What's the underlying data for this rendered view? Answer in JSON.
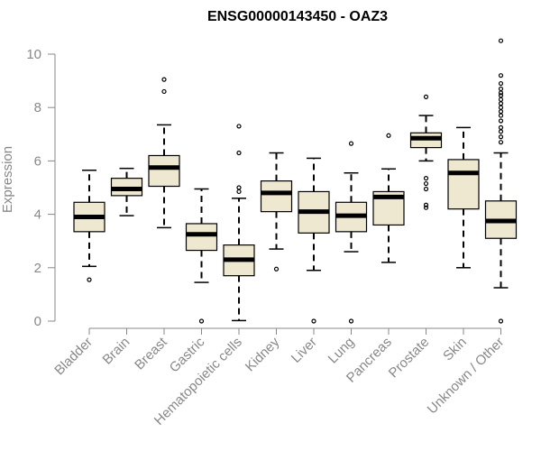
{
  "chart_data": {
    "type": "boxplot",
    "title": "ENSG00000143450 - OAZ3",
    "xlabel": "",
    "ylabel": "Expression",
    "ylim": [
      0,
      10.5
    ],
    "yticks": [
      0,
      2,
      4,
      6,
      8,
      10
    ],
    "grid": false,
    "colors": {
      "box_fill": "#efe8d0",
      "stroke": "#000000",
      "axis": "#888888"
    },
    "categories": [
      "Bladder",
      "Brain",
      "Breast",
      "Gastric",
      "Hematopoietic cells",
      "Kidney",
      "Liver",
      "Lung",
      "Pancreas",
      "Prostate",
      "Skin",
      "Unknown / Other"
    ],
    "boxes": [
      {
        "category": "Bladder",
        "whisker_low": 2.05,
        "q1": 3.35,
        "median": 3.9,
        "q3": 4.45,
        "whisker_high": 5.65,
        "outliers": [
          1.55
        ]
      },
      {
        "category": "Brain",
        "whisker_low": 3.95,
        "q1": 4.7,
        "median": 4.95,
        "q3": 5.35,
        "whisker_high": 5.72,
        "outliers": []
      },
      {
        "category": "Breast",
        "whisker_low": 3.5,
        "q1": 5.05,
        "median": 5.75,
        "q3": 6.2,
        "whisker_high": 7.35,
        "outliers": [
          8.6,
          9.05
        ]
      },
      {
        "category": "Gastric",
        "whisker_low": 1.45,
        "q1": 2.65,
        "median": 3.25,
        "q3": 3.65,
        "whisker_high": 4.95,
        "outliers": [
          0
        ]
      },
      {
        "category": "Hematopoietic cells",
        "whisker_low": 0.02,
        "q1": 1.7,
        "median": 2.3,
        "q3": 2.85,
        "whisker_high": 4.6,
        "outliers": [
          4.85,
          5.0,
          6.3,
          7.3
        ]
      },
      {
        "category": "Kidney",
        "whisker_low": 2.7,
        "q1": 4.1,
        "median": 4.8,
        "q3": 5.25,
        "whisker_high": 6.3,
        "outliers": [
          1.95
        ]
      },
      {
        "category": "Liver",
        "whisker_low": 1.9,
        "q1": 3.3,
        "median": 4.1,
        "q3": 4.85,
        "whisker_high": 6.1,
        "outliers": [
          0
        ]
      },
      {
        "category": "Lung",
        "whisker_low": 2.6,
        "q1": 3.35,
        "median": 3.95,
        "q3": 4.45,
        "whisker_high": 5.55,
        "outliers": [
          0,
          6.65
        ]
      },
      {
        "category": "Pancreas",
        "whisker_low": 2.2,
        "q1": 3.6,
        "median": 4.65,
        "q3": 4.85,
        "whisker_high": 5.7,
        "outliers": [
          6.95
        ]
      },
      {
        "category": "Prostate",
        "whisker_low": 6.0,
        "q1": 6.5,
        "median": 6.85,
        "q3": 7.05,
        "whisker_high": 7.7,
        "outliers": [
          4.25,
          4.35,
          4.95,
          5.15,
          5.35,
          8.4
        ]
      },
      {
        "category": "Skin",
        "whisker_low": 2.0,
        "q1": 4.2,
        "median": 5.55,
        "q3": 6.05,
        "whisker_high": 7.25,
        "outliers": []
      },
      {
        "category": "Unknown / Other",
        "whisker_low": 1.25,
        "q1": 3.1,
        "median": 3.75,
        "q3": 4.5,
        "whisker_high": 6.3,
        "outliers": [
          0,
          6.7,
          6.9,
          7.1,
          7.25,
          7.5,
          7.7,
          7.85,
          8.0,
          8.15,
          8.3,
          8.45,
          8.55,
          8.7,
          8.9,
          9.2,
          10.5
        ]
      }
    ]
  }
}
